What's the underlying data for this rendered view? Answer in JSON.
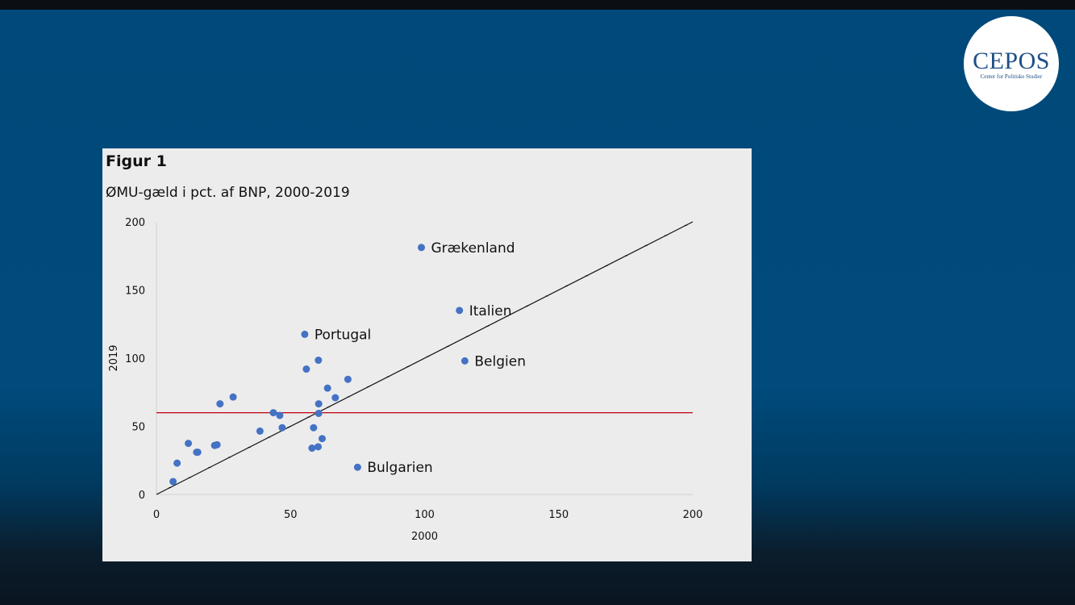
{
  "logo": {
    "name": "CEPOS",
    "subtitle": "Center for Politiske Studier"
  },
  "figure": {
    "label": "Figur 1",
    "title": "ØMU-gæld i pct. af BNP, 2000-2019"
  },
  "colors": {
    "points": "#4472c4",
    "diagonal": "#111111",
    "reference": "#c0000f"
  },
  "chart_data": {
    "type": "scatter",
    "title": "ØMU-gæld i pct. af BNP, 2000-2019",
    "xlabel": "2000",
    "ylabel": "2019",
    "xlim": [
      0,
      200
    ],
    "ylim": [
      0,
      200
    ],
    "xticks": [
      0,
      50,
      100,
      150,
      200
    ],
    "yticks": [
      0,
      50,
      100,
      150,
      200
    ],
    "grid": false,
    "reference_lines": [
      {
        "kind": "diagonal",
        "from": [
          0,
          0
        ],
        "to": [
          200,
          200
        ]
      },
      {
        "kind": "horizontal",
        "y": 60
      }
    ],
    "points": [
      {
        "x": 98.8,
        "y": 181.2,
        "label": "Grækenland"
      },
      {
        "x": 113.0,
        "y": 135.0,
        "label": "Italien"
      },
      {
        "x": 55.3,
        "y": 117.5,
        "label": "Portugal"
      },
      {
        "x": 115.0,
        "y": 98.0,
        "label": "Belgien"
      },
      {
        "x": 75.0,
        "y": 20.0,
        "label": "Bulgarien"
      },
      {
        "x": 6.2,
        "y": 9.5,
        "label": ""
      },
      {
        "x": 7.7,
        "y": 23.0,
        "label": ""
      },
      {
        "x": 11.9,
        "y": 37.5,
        "label": ""
      },
      {
        "x": 15.0,
        "y": 31.0,
        "label": ""
      },
      {
        "x": 15.4,
        "y": 31.0,
        "label": ""
      },
      {
        "x": 21.7,
        "y": 36.0,
        "label": ""
      },
      {
        "x": 22.6,
        "y": 36.5,
        "label": ""
      },
      {
        "x": 23.7,
        "y": 66.5,
        "label": ""
      },
      {
        "x": 28.6,
        "y": 71.5,
        "label": ""
      },
      {
        "x": 38.6,
        "y": 46.5,
        "label": ""
      },
      {
        "x": 43.6,
        "y": 60.0,
        "label": ""
      },
      {
        "x": 46.0,
        "y": 58.0,
        "label": ""
      },
      {
        "x": 46.9,
        "y": 49.0,
        "label": ""
      },
      {
        "x": 55.9,
        "y": 92.0,
        "label": ""
      },
      {
        "x": 58.0,
        "y": 34.0,
        "label": ""
      },
      {
        "x": 58.6,
        "y": 49.0,
        "label": ""
      },
      {
        "x": 60.3,
        "y": 35.0,
        "label": ""
      },
      {
        "x": 60.4,
        "y": 98.5,
        "label": ""
      },
      {
        "x": 60.5,
        "y": 66.5,
        "label": ""
      },
      {
        "x": 60.5,
        "y": 59.5,
        "label": ""
      },
      {
        "x": 61.8,
        "y": 41.0,
        "label": ""
      },
      {
        "x": 63.8,
        "y": 78.0,
        "label": ""
      },
      {
        "x": 66.7,
        "y": 71.0,
        "label": ""
      },
      {
        "x": 71.4,
        "y": 84.5,
        "label": ""
      }
    ]
  }
}
